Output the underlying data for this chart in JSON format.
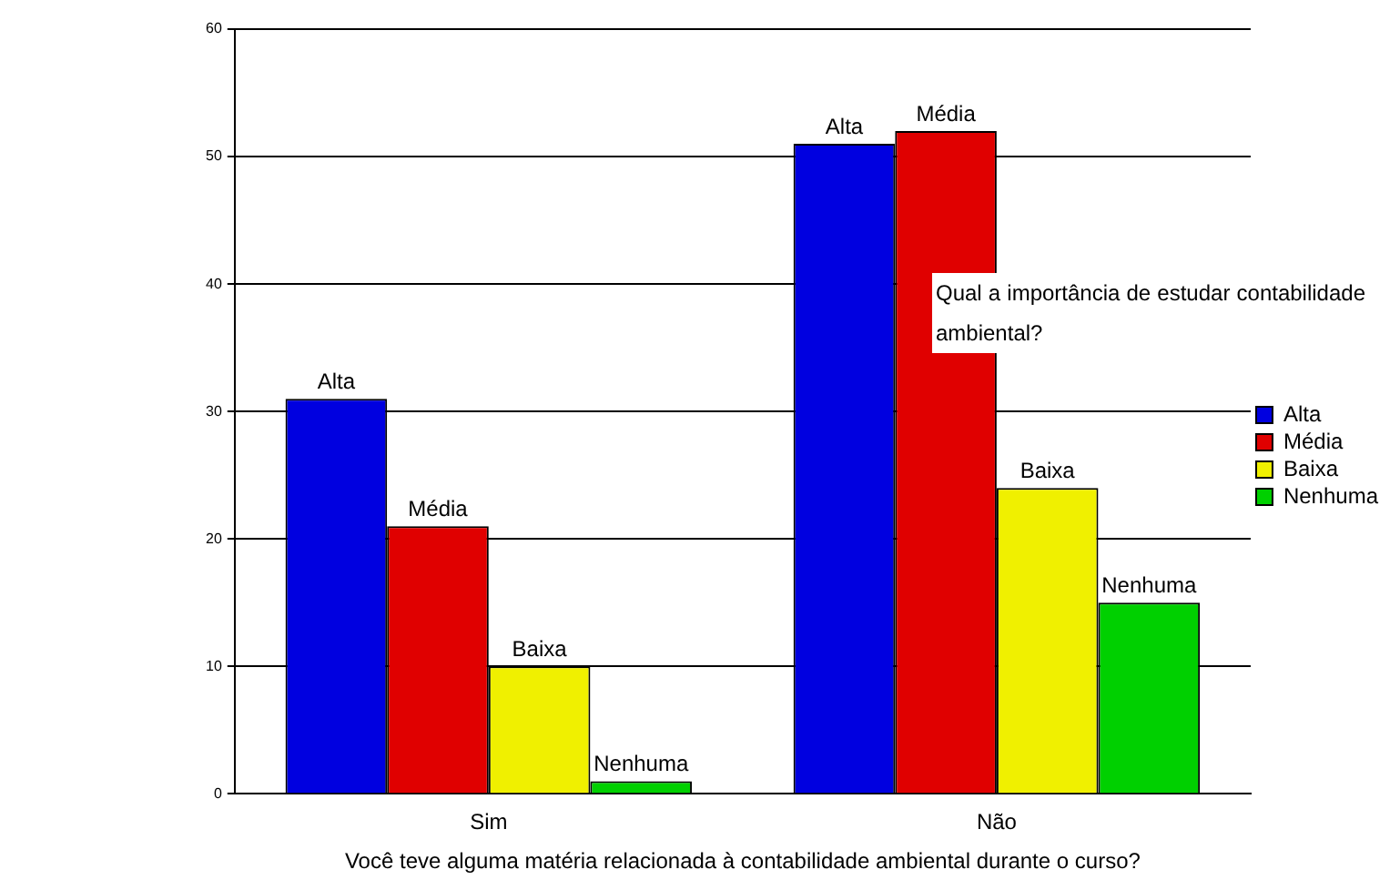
{
  "chart_data": {
    "type": "bar",
    "title": "Qual a importância de estudar contabilidade ambiental?",
    "xlabel": "Você teve alguma matéria relacionada à contabilidade ambiental durante o curso?",
    "categories": [
      "Sim",
      "Não"
    ],
    "series": [
      {
        "name": "Alta",
        "color": "#0000e0",
        "values": [
          31,
          51
        ]
      },
      {
        "name": "Média",
        "color": "#e00000",
        "values": [
          21,
          52
        ]
      },
      {
        "name": "Baixa",
        "color": "#f0f000",
        "values": [
          10,
          24
        ]
      },
      {
        "name": "Nenhuma",
        "color": "#00d000",
        "values": [
          1,
          15
        ]
      }
    ],
    "ylim": [
      0,
      60
    ],
    "yticks": [
      0,
      10,
      20,
      30,
      40,
      50,
      60
    ],
    "grid": "y",
    "legend": "right",
    "annotations": [
      "Alta",
      "Média",
      "Baixa",
      "Nenhuma",
      "Alta",
      "Média",
      "Baixa",
      "Nenhuma"
    ]
  }
}
